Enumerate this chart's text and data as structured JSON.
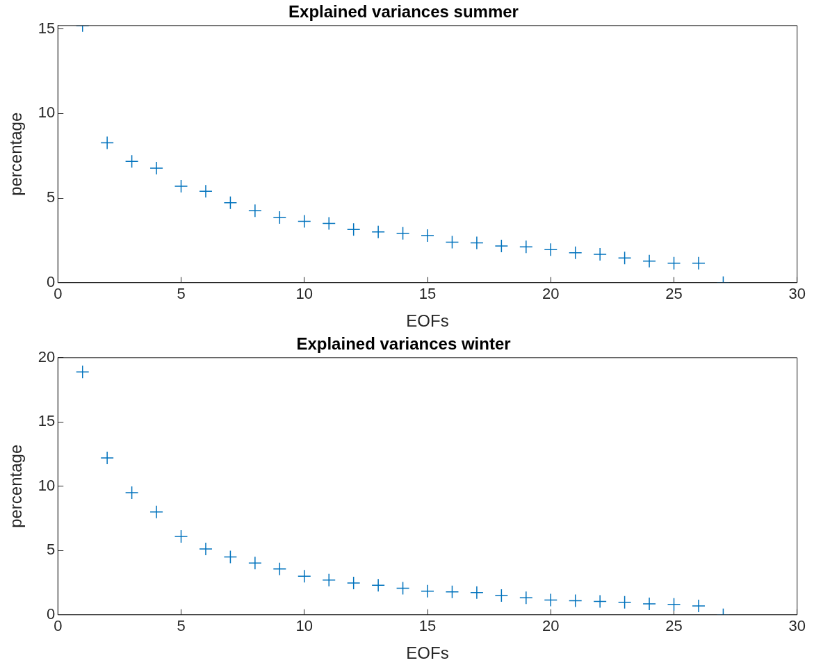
{
  "chart_data": [
    {
      "type": "scatter",
      "title": "Explained variances summer",
      "xlabel": "EOFs",
      "ylabel": "percentage",
      "marker": "cross",
      "grid": false,
      "xlim": [
        0,
        30
      ],
      "xticks": [
        0,
        5,
        10,
        15,
        20,
        25,
        30
      ],
      "ylim": [
        0,
        15.2
      ],
      "yticks": [
        0,
        5,
        10,
        15
      ],
      "x": [
        1,
        2,
        3,
        4,
        5,
        6,
        7,
        8,
        9,
        10,
        11,
        12,
        13,
        14,
        15,
        16,
        17,
        18,
        19,
        20,
        21,
        22,
        23,
        24,
        25,
        26,
        27
      ],
      "series": [
        {
          "color": "#0072bd",
          "values": [
            15.2,
            8.27,
            7.17,
            6.77,
            5.7,
            5.4,
            4.73,
            4.25,
            3.85,
            3.63,
            3.5,
            3.14,
            3.0,
            2.92,
            2.79,
            2.39,
            2.35,
            2.17,
            2.12,
            1.95,
            1.77,
            1.68,
            1.46,
            1.28,
            1.15,
            1.15,
            0
          ]
        }
      ]
    },
    {
      "type": "scatter",
      "title": "Explained variances winter",
      "xlabel": "EOFs",
      "ylabel": "percentage",
      "marker": "cross",
      "grid": false,
      "xlim": [
        0,
        30
      ],
      "xticks": [
        0,
        5,
        10,
        15,
        20,
        25,
        30
      ],
      "ylim": [
        0,
        20
      ],
      "yticks": [
        0,
        5,
        10,
        15,
        20
      ],
      "x": [
        1,
        2,
        3,
        4,
        5,
        6,
        7,
        8,
        9,
        10,
        11,
        12,
        13,
        14,
        15,
        16,
        17,
        18,
        19,
        20,
        21,
        22,
        23,
        24,
        25,
        26,
        27
      ],
      "series": [
        {
          "color": "#0072bd",
          "values": [
            18.9,
            12.2,
            9.5,
            8.0,
            6.1,
            5.13,
            4.5,
            4.03,
            3.57,
            3.0,
            2.7,
            2.48,
            2.3,
            2.07,
            1.84,
            1.79,
            1.73,
            1.5,
            1.33,
            1.15,
            1.1,
            1.04,
            0.98,
            0.86,
            0.81,
            0.69,
            0
          ]
        }
      ]
    }
  ]
}
